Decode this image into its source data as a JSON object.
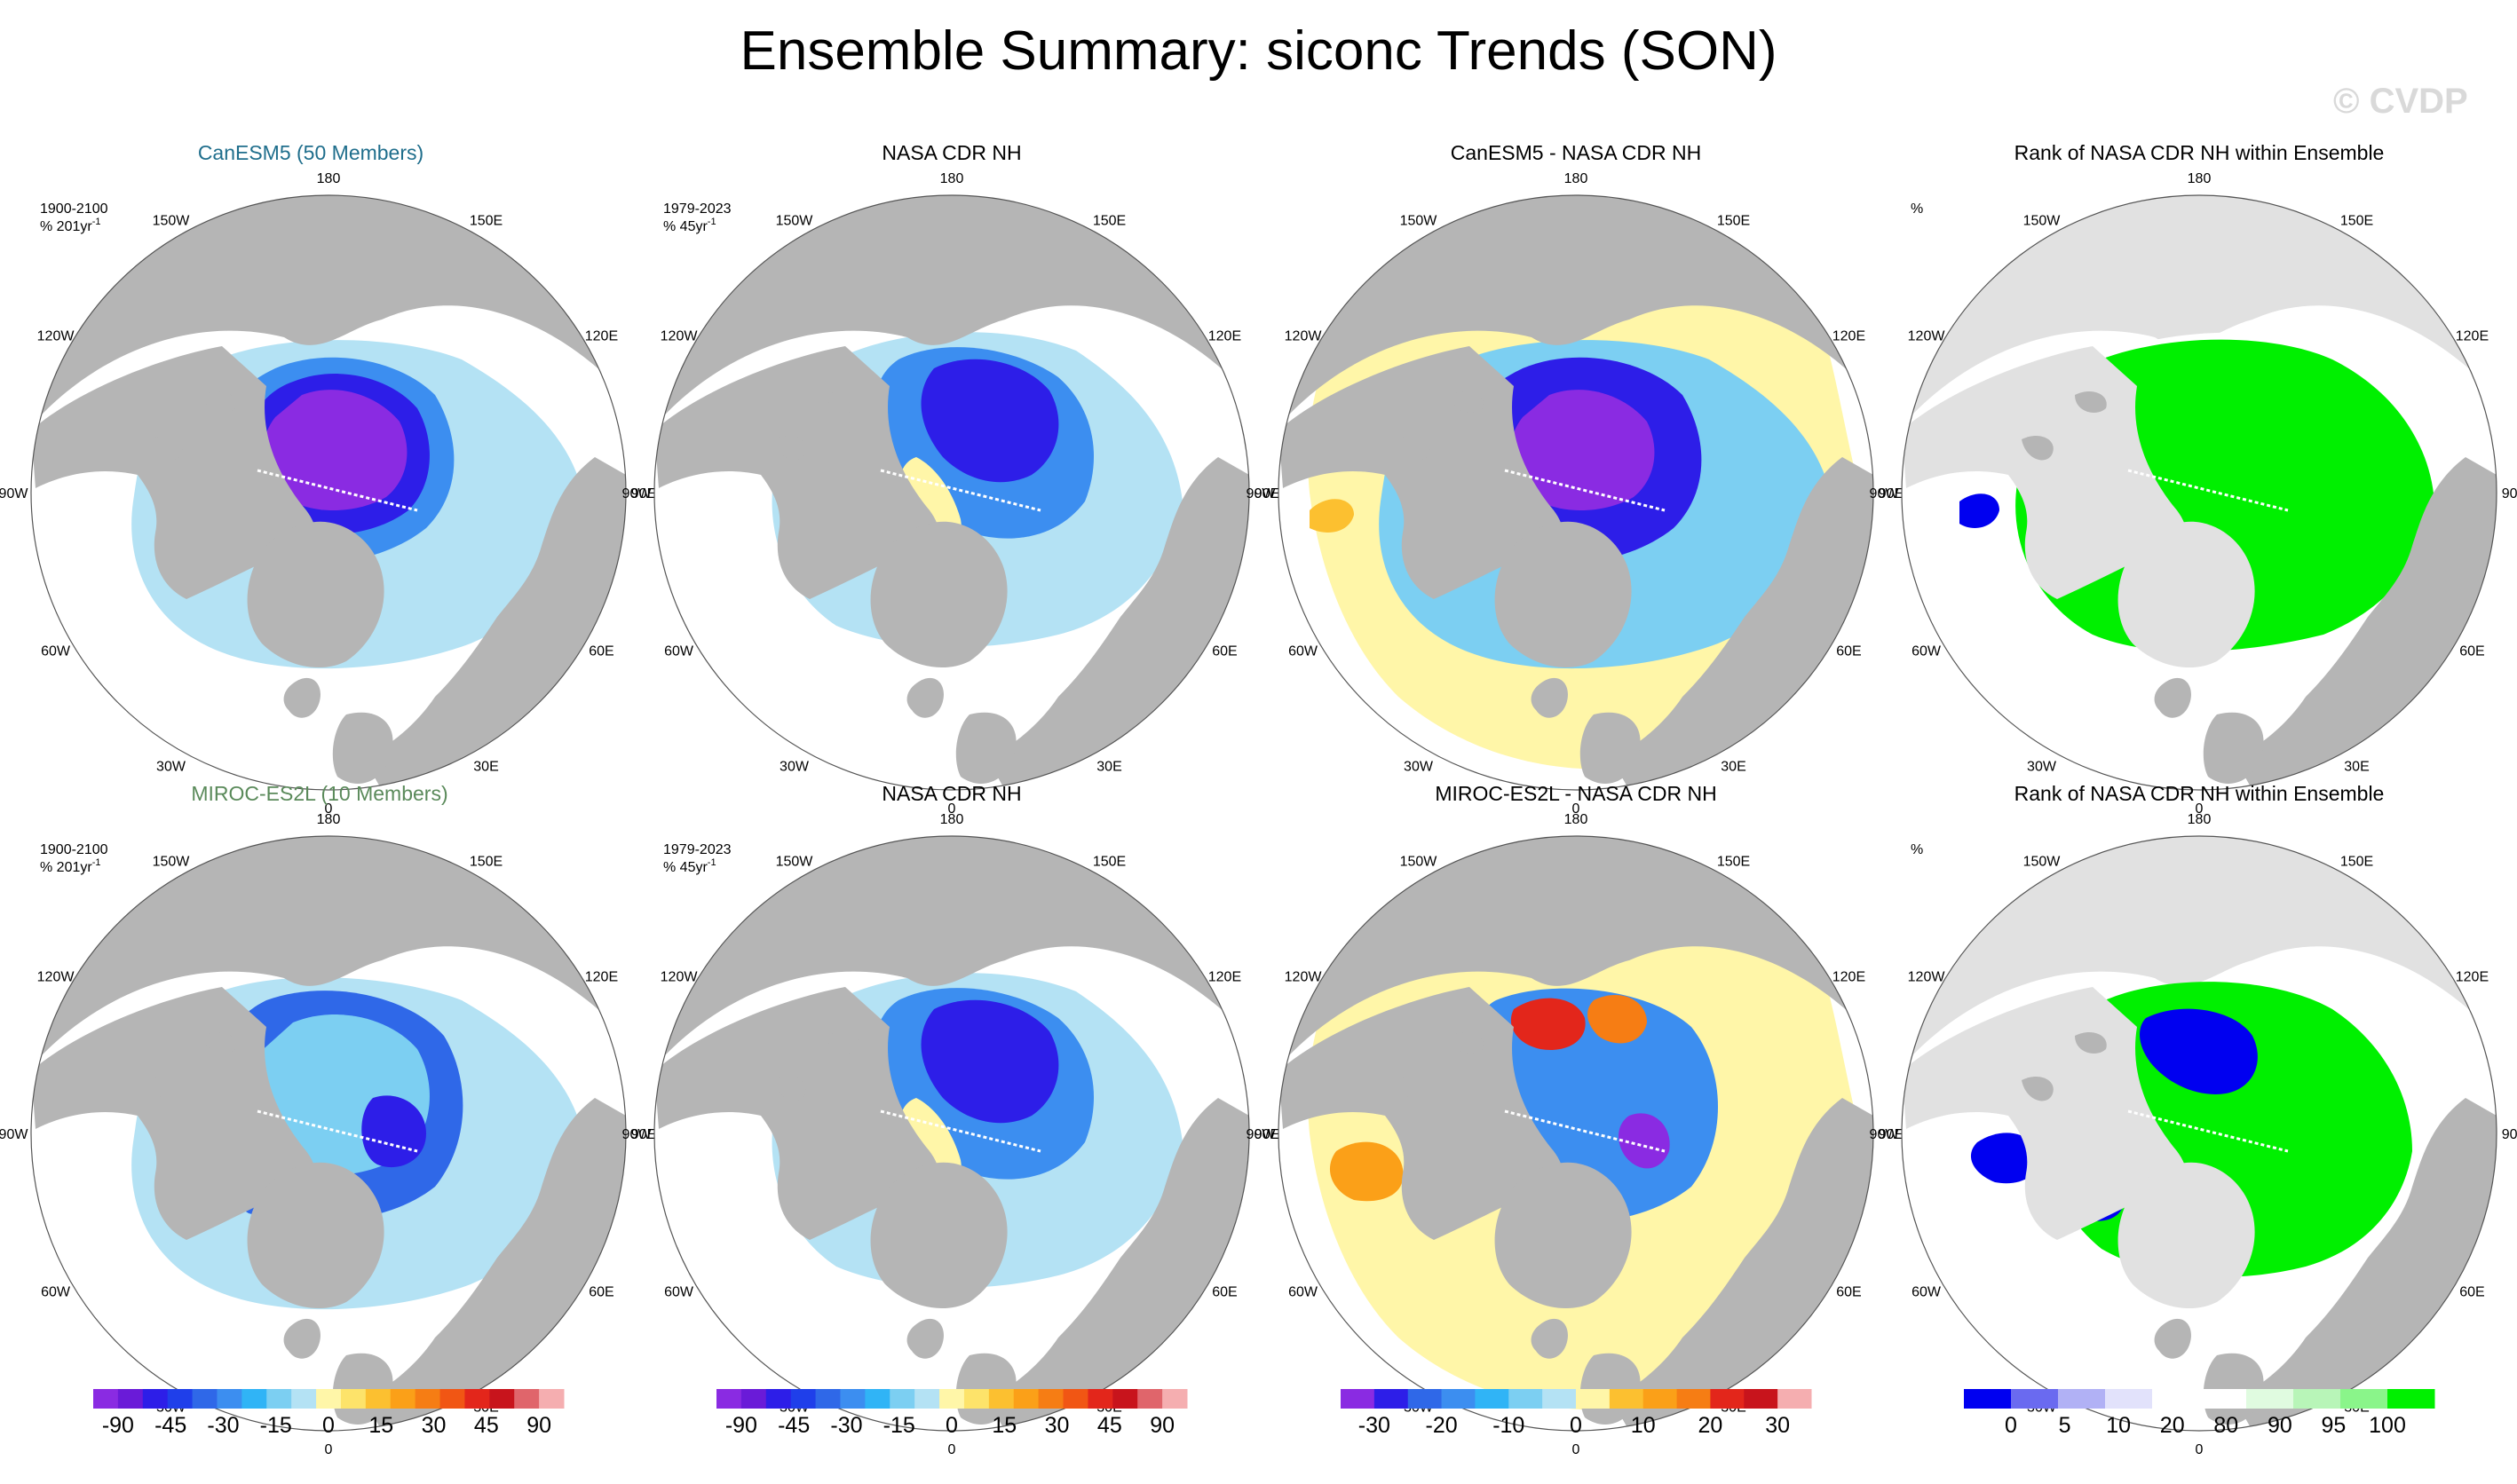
{
  "page": {
    "title": "Ensemble Summary: siconc Trends (SON)",
    "watermark": "© CVDP"
  },
  "chart_data": {
    "type": "map",
    "projection": "North polar stereographic",
    "longitude_labels": [
      "180",
      "150E",
      "120E",
      "90E",
      "60E",
      "30E",
      "0",
      "30W",
      "60W",
      "90W",
      "120W",
      "150W"
    ],
    "colors": {
      "land": "#b5b5b5",
      "land_rank": "#e1e1e1",
      "ocean": "#ffffff"
    },
    "panels": [
      {
        "id": "p0",
        "row": 0,
        "col": 0,
        "title": "CanESM5 (50 Members)",
        "title_color": "#1f6e8c",
        "annotation": [
          "1900-2100",
          "% 201yr"
        ],
        "sup": "-1",
        "fill": "trend_canesm5"
      },
      {
        "id": "p1",
        "row": 0,
        "col": 1,
        "title": "NASA CDR NH",
        "title_color": "#000000",
        "annotation": [
          "1979-2023",
          "% 45yr"
        ],
        "sup": "-1",
        "fill": "trend_obs"
      },
      {
        "id": "p2",
        "row": 0,
        "col": 2,
        "title": "CanESM5 - NASA CDR NH",
        "title_color": "#000000",
        "annotation": [],
        "fill": "diff_canesm5"
      },
      {
        "id": "p3",
        "row": 0,
        "col": 3,
        "title": "Rank of NASA CDR NH within Ensemble",
        "title_color": "#000000",
        "annotation": [
          "%"
        ],
        "fill": "rank_canesm5"
      },
      {
        "id": "p4",
        "row": 1,
        "col": 0,
        "title": "MIROC-ES2L (10 Members)",
        "title_color": "#5a8a5a",
        "annotation": [
          "1900-2100",
          "% 201yr"
        ],
        "sup": "-1",
        "fill": "trend_miroc"
      },
      {
        "id": "p5",
        "row": 1,
        "col": 1,
        "title": "NASA CDR NH",
        "title_color": "#000000",
        "annotation": [
          "1979-2023",
          "% 45yr"
        ],
        "sup": "-1",
        "fill": "trend_obs"
      },
      {
        "id": "p6",
        "row": 1,
        "col": 2,
        "title": "MIROC-ES2L - NASA CDR NH",
        "title_color": "#000000",
        "annotation": [],
        "fill": "diff_miroc"
      },
      {
        "id": "p7",
        "row": 1,
        "col": 3,
        "title": "Rank of NASA CDR NH within Ensemble",
        "title_color": "#000000",
        "annotation": [
          "%"
        ],
        "fill": "rank_miroc"
      }
    ],
    "colorbars": [
      {
        "id": "cb_trend1",
        "under_col": 0,
        "colors": [
          "#8a2be2",
          "#6a1bd8",
          "#2d1ee8",
          "#1f3fea",
          "#2f68e8",
          "#3c8ef0",
          "#30b4f6",
          "#7ccff2",
          "#b4e2f4",
          "#fff6a8",
          "#fde36a",
          "#fcc030",
          "#fba018",
          "#f67d14",
          "#f15614",
          "#e3261b",
          "#c8141c",
          "#e0656b",
          "#f5aeb0"
        ],
        "ticks": [
          "-90",
          "-45",
          "-30",
          "-15",
          "0",
          "15",
          "30",
          "45",
          "90"
        ]
      },
      {
        "id": "cb_trend2",
        "under_col": 1,
        "colors": [
          "#8a2be2",
          "#6a1bd8",
          "#2d1ee8",
          "#1f3fea",
          "#2f68e8",
          "#3c8ef0",
          "#30b4f6",
          "#7ccff2",
          "#b4e2f4",
          "#fff6a8",
          "#fde36a",
          "#fcc030",
          "#fba018",
          "#f67d14",
          "#f15614",
          "#e3261b",
          "#c8141c",
          "#e0656b",
          "#f5aeb0"
        ],
        "ticks": [
          "-90",
          "-45",
          "-30",
          "-15",
          "0",
          "15",
          "30",
          "45",
          "90"
        ]
      },
      {
        "id": "cb_diff",
        "under_col": 2,
        "colors": [
          "#8a2be2",
          "#2d1ee8",
          "#2f68e8",
          "#3c8ef0",
          "#30b4f6",
          "#7ccff2",
          "#b4e2f4",
          "#fff6a8",
          "#fcc030",
          "#fba018",
          "#f67d14",
          "#e3261b",
          "#c8141c",
          "#f5aeb0"
        ],
        "ticks": [
          "-30",
          "-20",
          "-10",
          "0",
          "10",
          "20",
          "30"
        ]
      },
      {
        "id": "cb_rank",
        "under_col": 3,
        "colors": [
          "#0000f0",
          "#6a6af0",
          "#b1b1f5",
          "#e2e2fb",
          "#ffffff",
          "#ffffff",
          "#e0fbe0",
          "#b8f5b8",
          "#8af58a",
          "#00f000"
        ],
        "ticks": [
          "0",
          "5",
          "10",
          "20",
          "80",
          "90",
          "95",
          "100"
        ]
      }
    ],
    "legend_placement": "bottom"
  }
}
